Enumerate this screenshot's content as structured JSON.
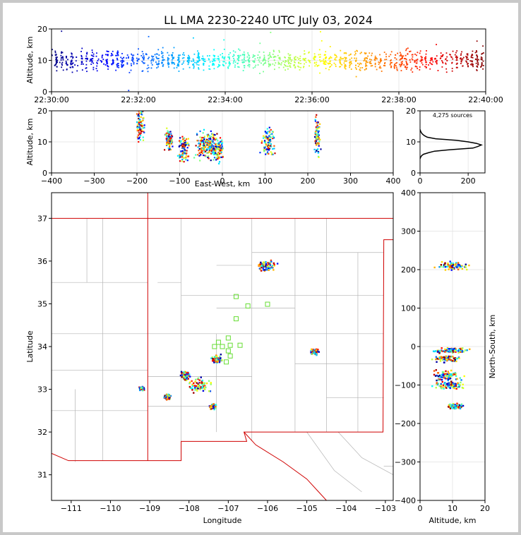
{
  "title": "LL LMA 2230-2240 UTC July 03, 2024",
  "colors": {
    "background": "#c8c8c8",
    "state_lines": "#d00000",
    "county_lines": "#b4b4b4",
    "station_marker": "#66dd33",
    "histogram": "#000000"
  },
  "chart_data": [
    {
      "id": "time_height",
      "type": "scatter",
      "ylabel": "Altitude, km",
      "xlabel": "",
      "ylim": [
        0,
        20
      ],
      "yticks": [
        "0",
        "10",
        "20"
      ],
      "xlim": [
        "22:30:00",
        "22:40:00"
      ],
      "xticks": [
        "22:30:00",
        "22:32:00",
        "22:34:00",
        "22:36:00",
        "22:38:00",
        "22:40:00"
      ],
      "color_by": "time (blue to red)",
      "clusters": [
        {
          "t_start": "22:30:00",
          "t_end": "22:40:00",
          "alt_center": 10,
          "alt_spread": 1.5
        }
      ]
    },
    {
      "id": "ew_height",
      "type": "scatter",
      "xlabel": "East-West, km",
      "ylabel": "Altitude, km",
      "xlim": [
        -400,
        400
      ],
      "ylim": [
        0,
        20
      ],
      "xticks": [
        "−400",
        "−300",
        "−200",
        "−100",
        "0",
        "100",
        "200",
        "300",
        "400"
      ],
      "yticks": [
        "0",
        "10",
        "20"
      ],
      "clusters": [
        {
          "x": -192,
          "alt": 16,
          "spread_x": 4,
          "spread_alt": 3
        },
        {
          "x": -125,
          "alt": 11,
          "spread_x": 4,
          "spread_alt": 1.5
        },
        {
          "x": -90,
          "alt": 8,
          "spread_x": 6,
          "spread_alt": 2
        },
        {
          "x": -48,
          "alt": 9,
          "spread_x": 8,
          "spread_alt": 2
        },
        {
          "x": -28,
          "alt": 9,
          "spread_x": 6,
          "spread_alt": 2
        },
        {
          "x": -10,
          "alt": 8,
          "spread_x": 6,
          "spread_alt": 2
        },
        {
          "x": 108,
          "alt": 10,
          "spread_x": 8,
          "spread_alt": 2.5
        },
        {
          "x": 222,
          "alt": 12,
          "spread_x": 3,
          "spread_alt": 3
        }
      ]
    },
    {
      "id": "altitude_histogram",
      "type": "line",
      "annotation": "4,275 sources",
      "xlim": [
        0,
        270
      ],
      "ylim": [
        0,
        20
      ],
      "xticks": [
        "0",
        "200"
      ],
      "yticks": [
        "0",
        "10",
        "20"
      ],
      "profile": [
        {
          "count": 0,
          "alt": 4.5
        },
        {
          "count": 2,
          "alt": 5
        },
        {
          "count": 6,
          "alt": 5.5
        },
        {
          "count": 14,
          "alt": 6
        },
        {
          "count": 35,
          "alt": 6.5
        },
        {
          "count": 60,
          "alt": 7
        },
        {
          "count": 130,
          "alt": 7.5
        },
        {
          "count": 220,
          "alt": 8
        },
        {
          "count": 240,
          "alt": 8.5
        },
        {
          "count": 255,
          "alt": 9
        },
        {
          "count": 235,
          "alt": 9.5
        },
        {
          "count": 200,
          "alt": 10
        },
        {
          "count": 150,
          "alt": 10.5
        },
        {
          "count": 65,
          "alt": 11
        },
        {
          "count": 30,
          "alt": 11.5
        },
        {
          "count": 18,
          "alt": 12
        },
        {
          "count": 10,
          "alt": 12.5
        },
        {
          "count": 5,
          "alt": 13
        },
        {
          "count": 2,
          "alt": 13.5
        },
        {
          "count": 0,
          "alt": 14
        }
      ]
    },
    {
      "id": "plan_view",
      "type": "scatter",
      "xlabel": "Longitude",
      "ylabel": "Latitude",
      "xlim": [
        -111.5,
        -102.8
      ],
      "ylim": [
        30.4,
        37.6
      ],
      "xticks": [
        "−111",
        "−110",
        "−109",
        "−108",
        "−107",
        "−106",
        "−105",
        "−104",
        "−103"
      ],
      "yticks": [
        "31",
        "32",
        "33",
        "34",
        "35",
        "36",
        "37"
      ],
      "clusters": [
        {
          "lon": -106.0,
          "lat": 35.88,
          "spread_lon": 0.12,
          "spread_lat": 0.06
        },
        {
          "lon": -107.7,
          "lat": 33.08,
          "spread_lon": 0.14,
          "spread_lat": 0.08
        },
        {
          "lon": -107.3,
          "lat": 33.7,
          "spread_lon": 0.06,
          "spread_lat": 0.04
        },
        {
          "lon": -108.1,
          "lat": 33.33,
          "spread_lon": 0.05,
          "spread_lat": 0.05
        },
        {
          "lon": -104.8,
          "lat": 33.88,
          "spread_lon": 0.04,
          "spread_lat": 0.03
        },
        {
          "lon": -108.55,
          "lat": 32.82,
          "spread_lon": 0.04,
          "spread_lat": 0.03
        },
        {
          "lon": -107.4,
          "lat": 32.6,
          "spread_lon": 0.04,
          "spread_lat": 0.03
        },
        {
          "lon": -109.2,
          "lat": 33.02,
          "spread_lon": 0.03,
          "spread_lat": 0.02
        }
      ],
      "stations": [
        {
          "lon": -106.8,
          "lat": 35.17
        },
        {
          "lon": -106.5,
          "lat": 34.95
        },
        {
          "lon": -106.0,
          "lat": 34.99
        },
        {
          "lon": -106.8,
          "lat": 34.65
        },
        {
          "lon": -107.0,
          "lat": 34.2
        },
        {
          "lon": -107.25,
          "lat": 34.1
        },
        {
          "lon": -107.35,
          "lat": 34.0
        },
        {
          "lon": -107.15,
          "lat": 34.0
        },
        {
          "lon": -106.95,
          "lat": 34.03
        },
        {
          "lon": -107.0,
          "lat": 33.9
        },
        {
          "lon": -106.95,
          "lat": 33.78
        },
        {
          "lon": -107.05,
          "lat": 33.64
        },
        {
          "lon": -106.7,
          "lat": 34.03
        }
      ]
    },
    {
      "id": "ns_height",
      "type": "scatter",
      "xlabel": "Altitude, km",
      "ylabel": "North-South, km",
      "xlim": [
        0,
        20
      ],
      "ylim": [
        -400,
        400
      ],
      "xticks": [
        "0",
        "10",
        "20"
      ],
      "yticks": [
        "−400",
        "−300",
        "−200",
        "−100",
        "0",
        "100",
        "200",
        "300",
        "400"
      ],
      "clusters": [
        {
          "alt": 10,
          "ns": 210,
          "spread_alt": 2,
          "spread_ns": 5
        },
        {
          "alt": 10,
          "ns": -10,
          "spread_alt": 2.5,
          "spread_ns": 3
        },
        {
          "alt": 8,
          "ns": -32,
          "spread_alt": 2,
          "spread_ns": 4
        },
        {
          "alt": 8,
          "ns": -75,
          "spread_alt": 2,
          "spread_ns": 6
        },
        {
          "alt": 9,
          "ns": -100,
          "spread_alt": 2,
          "spread_ns": 6
        },
        {
          "alt": 11,
          "ns": -155,
          "spread_alt": 1,
          "spread_ns": 3
        }
      ]
    }
  ]
}
